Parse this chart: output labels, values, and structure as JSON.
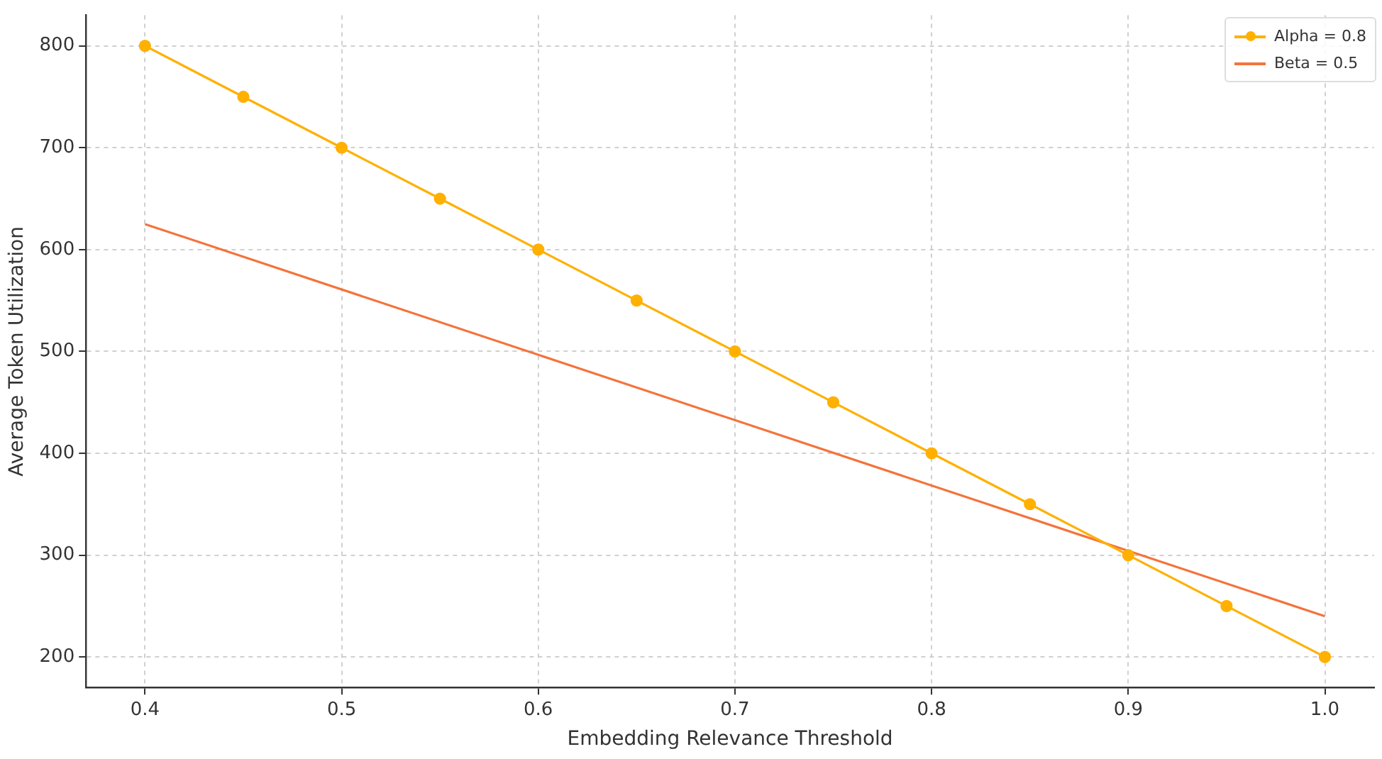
{
  "chart_data": {
    "type": "line",
    "xlabel": "Embedding Relevance Threshold",
    "ylabel": "Average Token Utilization",
    "x": [
      0.4,
      0.45,
      0.5,
      0.55,
      0.6,
      0.65,
      0.7,
      0.75,
      0.8,
      0.85,
      0.9,
      0.95,
      1.0
    ],
    "series": [
      {
        "name": "Alpha = 0.8",
        "color": "#ffb000",
        "marker": "circle",
        "values": [
          800,
          750,
          700,
          650,
          600,
          550,
          500,
          450,
          400,
          350,
          300,
          250,
          200
        ]
      },
      {
        "name": "Beta = 0.5",
        "color": "#f4733a",
        "marker": "none",
        "x": [
          0.4,
          1.0
        ],
        "values": [
          625,
          240
        ]
      }
    ],
    "xlim": [
      0.37,
      1.025
    ],
    "xticks": [
      0.4,
      0.5,
      0.6,
      0.7,
      0.8,
      0.9,
      {
        "value": 1,
        "label": "1.0"
      }
    ],
    "ylim": [
      170,
      830
    ],
    "yticks": [
      200,
      300,
      400,
      500,
      600,
      700,
      800
    ],
    "grid": true,
    "legend": "top right",
    "line_style": "solid"
  }
}
